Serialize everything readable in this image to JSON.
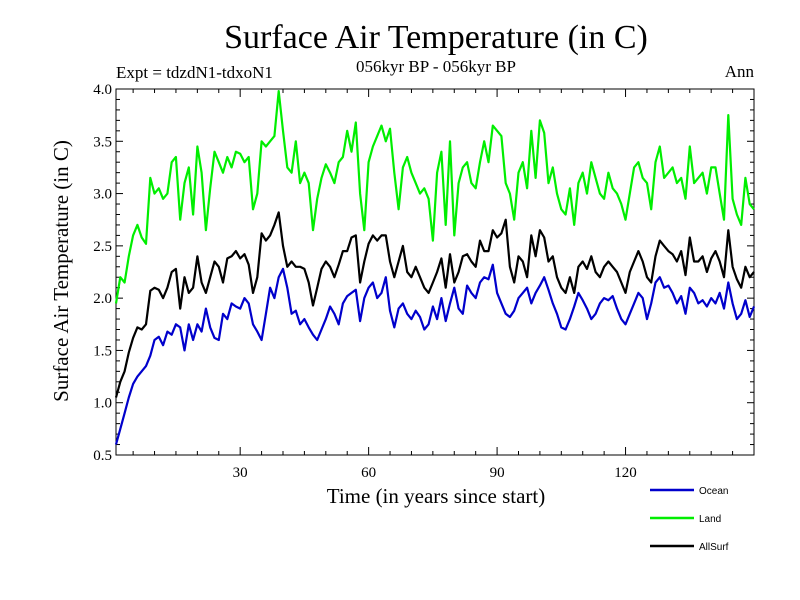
{
  "chart_data": {
    "type": "line",
    "title": "Surface Air Temperature (in C)",
    "subtitle": "056kyr BP - 056kyr BP",
    "experiment": "Expt = tdzdN1-tdxoN1",
    "season": "Ann",
    "xlabel": "Time (in years since start)",
    "ylabel": "Surface Air Temperature (in C)",
    "xlim": [
      1,
      150
    ],
    "ylim": [
      0.5,
      4.0
    ],
    "x_ticks": [
      30,
      60,
      90,
      120
    ],
    "x_tick_labels": [
      "30",
      "60",
      "90",
      "120"
    ],
    "y_ticks": [
      0.5,
      1.0,
      1.5,
      2.0,
      2.5,
      3.0,
      3.5,
      4.0
    ],
    "y_tick_labels": [
      "0.5",
      "1.0",
      "1.5",
      "2.0",
      "2.5",
      "3.0",
      "3.5",
      "4.0"
    ],
    "series": [
      {
        "name": "Ocean",
        "color": "#0000cc",
        "values": [
          0.6,
          0.75,
          0.9,
          1.05,
          1.18,
          1.25,
          1.3,
          1.35,
          1.45,
          1.6,
          1.63,
          1.55,
          1.68,
          1.65,
          1.75,
          1.72,
          1.5,
          1.75,
          1.6,
          1.75,
          1.68,
          1.9,
          1.72,
          1.62,
          1.6,
          1.85,
          1.8,
          1.95,
          1.92,
          1.9,
          2.0,
          1.95,
          1.75,
          1.68,
          1.6,
          1.85,
          2.1,
          2.0,
          2.2,
          2.28,
          2.1,
          1.85,
          1.88,
          1.75,
          1.8,
          1.72,
          1.65,
          1.6,
          1.7,
          1.8,
          1.92,
          1.85,
          1.75,
          1.95,
          2.02,
          2.05,
          2.08,
          1.78,
          2.0,
          2.1,
          2.15,
          2.0,
          2.05,
          2.2,
          1.88,
          1.72,
          1.9,
          1.95,
          1.85,
          1.8,
          1.88,
          1.82,
          1.7,
          1.75,
          1.92,
          1.8,
          2.0,
          1.78,
          1.95,
          2.1,
          1.9,
          1.85,
          2.12,
          2.05,
          2.0,
          2.15,
          2.2,
          2.18,
          2.32,
          2.05,
          1.95,
          1.85,
          1.82,
          1.88,
          2.0,
          2.05,
          2.1,
          1.95,
          2.05,
          2.12,
          2.2,
          2.08,
          1.95,
          1.85,
          1.72,
          1.7,
          1.8,
          1.92,
          2.05,
          1.98,
          1.9,
          1.8,
          1.85,
          1.95,
          2.0,
          1.98,
          2.02,
          1.9,
          1.8,
          1.75,
          1.85,
          1.95,
          2.05,
          2.0,
          1.8,
          1.95,
          2.15,
          2.2,
          2.1,
          2.12,
          2.05,
          1.95,
          2.02,
          1.85,
          2.1,
          2.05,
          1.95,
          1.98,
          1.92,
          2.0,
          1.95,
          2.05,
          1.9,
          2.15,
          1.95,
          1.8,
          1.85,
          1.98,
          1.82,
          1.92
        ]
      },
      {
        "name": "Land",
        "color": "#00ee00",
        "values": [
          1.95,
          2.2,
          2.15,
          2.4,
          2.6,
          2.7,
          2.58,
          2.52,
          3.15,
          3.0,
          3.05,
          2.95,
          3.0,
          3.3,
          3.35,
          2.75,
          3.1,
          3.25,
          2.8,
          3.45,
          3.2,
          2.65,
          3.05,
          3.4,
          3.3,
          3.2,
          3.35,
          3.25,
          3.4,
          3.38,
          3.3,
          3.35,
          2.85,
          3.0,
          3.5,
          3.45,
          3.5,
          3.55,
          3.98,
          3.6,
          3.25,
          3.2,
          3.5,
          3.1,
          3.2,
          3.1,
          2.65,
          2.95,
          3.15,
          3.28,
          3.2,
          3.1,
          3.3,
          3.35,
          3.6,
          3.4,
          3.68,
          3.0,
          2.65,
          3.3,
          3.45,
          3.55,
          3.65,
          3.5,
          3.62,
          3.2,
          2.85,
          3.25,
          3.35,
          3.2,
          3.1,
          3.0,
          3.05,
          2.95,
          2.55,
          3.2,
          3.4,
          2.7,
          3.5,
          2.6,
          3.1,
          3.25,
          3.3,
          3.1,
          3.05,
          3.3,
          3.5,
          3.3,
          3.65,
          3.6,
          3.55,
          3.1,
          3.0,
          2.75,
          3.2,
          3.3,
          3.05,
          3.6,
          3.15,
          3.7,
          3.58,
          3.1,
          3.25,
          3.0,
          2.85,
          2.8,
          3.05,
          2.7,
          3.1,
          3.2,
          3.0,
          3.3,
          3.15,
          3.0,
          2.95,
          3.2,
          3.05,
          3.0,
          2.9,
          2.75,
          3.0,
          3.25,
          3.3,
          3.15,
          3.1,
          2.85,
          3.3,
          3.45,
          3.15,
          3.2,
          3.25,
          3.1,
          3.15,
          2.95,
          3.45,
          3.1,
          3.15,
          3.2,
          3.0,
          3.25,
          3.25,
          3.0,
          2.75,
          3.75,
          2.95,
          2.8,
          2.7,
          3.15,
          2.9,
          2.85
        ]
      },
      {
        "name": "AllSurf",
        "color": "#000000",
        "values": [
          1.05,
          1.2,
          1.3,
          1.48,
          1.62,
          1.72,
          1.7,
          1.75,
          2.07,
          2.1,
          2.08,
          2.0,
          2.1,
          2.25,
          2.28,
          1.9,
          2.2,
          2.05,
          2.1,
          2.4,
          2.15,
          2.05,
          2.2,
          2.35,
          2.3,
          2.15,
          2.38,
          2.4,
          2.45,
          2.38,
          2.42,
          2.32,
          2.05,
          2.2,
          2.62,
          2.55,
          2.6,
          2.7,
          2.82,
          2.5,
          2.3,
          2.35,
          2.3,
          2.3,
          2.28,
          2.15,
          1.93,
          2.1,
          2.28,
          2.35,
          2.3,
          2.2,
          2.32,
          2.45,
          2.45,
          2.58,
          2.6,
          2.15,
          2.35,
          2.52,
          2.6,
          2.55,
          2.6,
          2.6,
          2.35,
          2.2,
          2.35,
          2.5,
          2.25,
          2.2,
          2.3,
          2.2,
          2.1,
          2.05,
          2.15,
          2.25,
          2.38,
          2.1,
          2.42,
          2.15,
          2.25,
          2.4,
          2.42,
          2.35,
          2.3,
          2.55,
          2.45,
          2.45,
          2.65,
          2.58,
          2.62,
          2.75,
          2.3,
          2.15,
          2.4,
          2.35,
          2.2,
          2.6,
          2.4,
          2.65,
          2.58,
          2.35,
          2.4,
          2.2,
          2.1,
          2.05,
          2.2,
          2.05,
          2.3,
          2.35,
          2.28,
          2.4,
          2.25,
          2.2,
          2.3,
          2.35,
          2.3,
          2.25,
          2.15,
          2.05,
          2.25,
          2.35,
          2.45,
          2.35,
          2.2,
          2.15,
          2.4,
          2.55,
          2.5,
          2.45,
          2.42,
          2.35,
          2.45,
          2.22,
          2.58,
          2.35,
          2.35,
          2.4,
          2.25,
          2.38,
          2.45,
          2.35,
          2.2,
          2.65,
          2.3,
          2.18,
          2.1,
          2.3,
          2.2,
          2.25
        ]
      }
    ],
    "legend": {
      "placement": "bottom-right",
      "entries": [
        "Ocean",
        "Land",
        "AllSurf"
      ]
    }
  }
}
